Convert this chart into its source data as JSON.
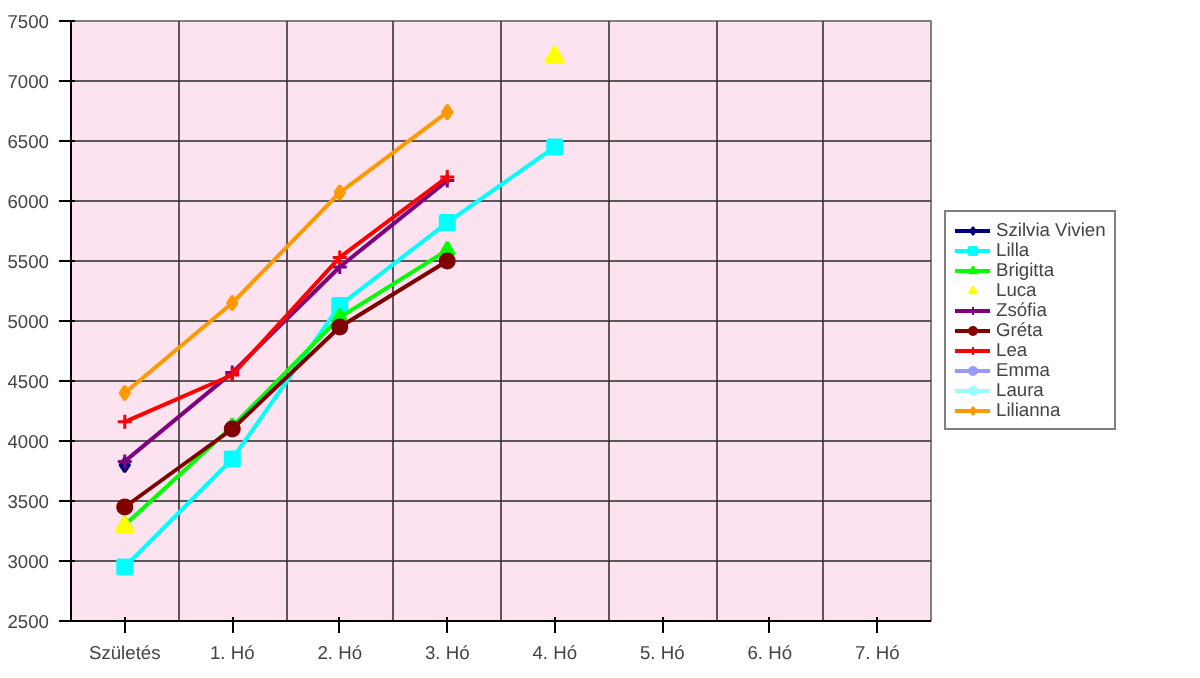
{
  "chart_data": {
    "type": "line",
    "categories": [
      "Születés",
      "1. Hó",
      "2. Hó",
      "3. Hó",
      "4. Hó",
      "5. Hó",
      "6. Hó",
      "7. Hó"
    ],
    "ylim": [
      2500,
      7500
    ],
    "yticks": [
      2500,
      3000,
      3500,
      4000,
      4500,
      5000,
      5500,
      6000,
      6500,
      7000,
      7500
    ],
    "grid": true,
    "legend": "right",
    "series": [
      {
        "name": "Szilvia Vivien",
        "color": "#000080",
        "marker": "diamond",
        "values": [
          3800,
          null,
          null,
          null,
          null,
          null,
          null,
          null
        ]
      },
      {
        "name": "Lilla",
        "color": "#00ffff",
        "marker": "square",
        "values": [
          2950,
          3850,
          5130,
          5820,
          6450,
          null,
          null,
          null
        ]
      },
      {
        "name": "Brigitta",
        "color": "#00ff00",
        "marker": "triangle",
        "values": [
          3300,
          4120,
          5030,
          5590,
          null,
          null,
          null,
          null
        ]
      },
      {
        "name": "Luca",
        "type": "scatter",
        "color": "#ffff00",
        "marker": "triangle",
        "values": [
          3280,
          null,
          null,
          null,
          7200,
          null,
          null,
          null
        ]
      },
      {
        "name": "Zsófia",
        "color": "#800080",
        "marker": "cross",
        "values": [
          3830,
          4570,
          5450,
          6170,
          null,
          null,
          null,
          null
        ]
      },
      {
        "name": "Gréta",
        "color": "#800000",
        "marker": "circle",
        "values": [
          3450,
          4100,
          4950,
          5500,
          null,
          null,
          null,
          null
        ]
      },
      {
        "name": "Lea",
        "color": "#ff0000",
        "marker": "cross",
        "values": [
          4160,
          4550,
          5530,
          6200,
          null,
          null,
          null,
          null
        ]
      },
      {
        "name": "Emma",
        "color": "#9999ff",
        "marker": "circle",
        "values": [
          null,
          null,
          null,
          null,
          null,
          null,
          null,
          null
        ]
      },
      {
        "name": "Laura",
        "color": "#99ffff",
        "marker": "circle",
        "values": [
          null,
          null,
          null,
          null,
          null,
          null,
          null,
          null
        ]
      },
      {
        "name": "Lilianna",
        "color": "#ff9900",
        "marker": "diamond",
        "values": [
          4400,
          5150,
          6070,
          6740,
          null,
          null,
          null,
          null
        ]
      }
    ]
  }
}
